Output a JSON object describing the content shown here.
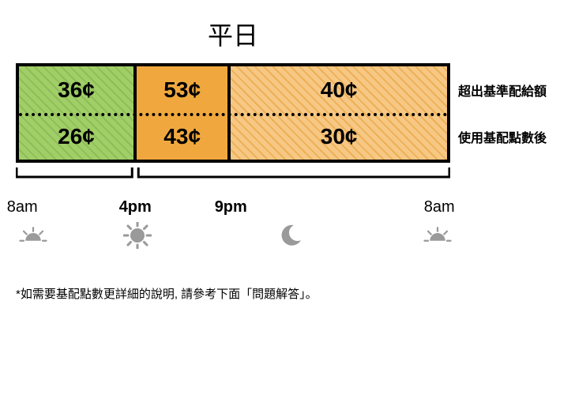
{
  "title": "平日",
  "segments": [
    {
      "widthPct": 27.5,
      "fill": "hatch-green",
      "top_value": "36¢",
      "bottom_value": "26¢",
      "sep_right": true
    },
    {
      "widthPct": 22.0,
      "fill": "solid-orange",
      "top_value": "53¢",
      "bottom_value": "43¢",
      "sep_right": true
    },
    {
      "widthPct": 50.5,
      "fill": "hatch-orange",
      "top_value": "40¢",
      "bottom_value": "30¢",
      "sep_right": false
    }
  ],
  "row_labels": {
    "top": "超出基準配給額",
    "bottom": "使用基配點數後"
  },
  "hours": [
    {
      "label": "8am",
      "posPct": 1.5,
      "bold": false
    },
    {
      "label": "4pm",
      "posPct": 27.5,
      "bold": true
    },
    {
      "label": "9pm",
      "posPct": 49.5,
      "bold": true
    },
    {
      "label": "8am",
      "posPct": 97.5,
      "bold": false
    }
  ],
  "icons": [
    {
      "kind": "sunrise",
      "posPct": 4
    },
    {
      "kind": "sun",
      "posPct": 28
    },
    {
      "kind": "moon",
      "posPct": 63
    },
    {
      "kind": "sunrise",
      "posPct": 97
    }
  ],
  "colors": {
    "border": "#000000",
    "text": "#000000",
    "icon": "#9a9a9a",
    "green_base": "#a0cf67",
    "green_hatch": "#84b050",
    "orange_solid": "#f0a83e",
    "orange_hatch_base": "#f6c884",
    "orange_hatch_line": "#e89b32",
    "background": "#ffffff"
  },
  "axis_brackets": [
    {
      "startPct": 0,
      "endPct": 27.5
    },
    {
      "startPct": 27.5,
      "endPct": 100
    }
  ],
  "footnote": "*如需要基配點數更詳細的說明, 請參考下面「問題解答」。"
}
